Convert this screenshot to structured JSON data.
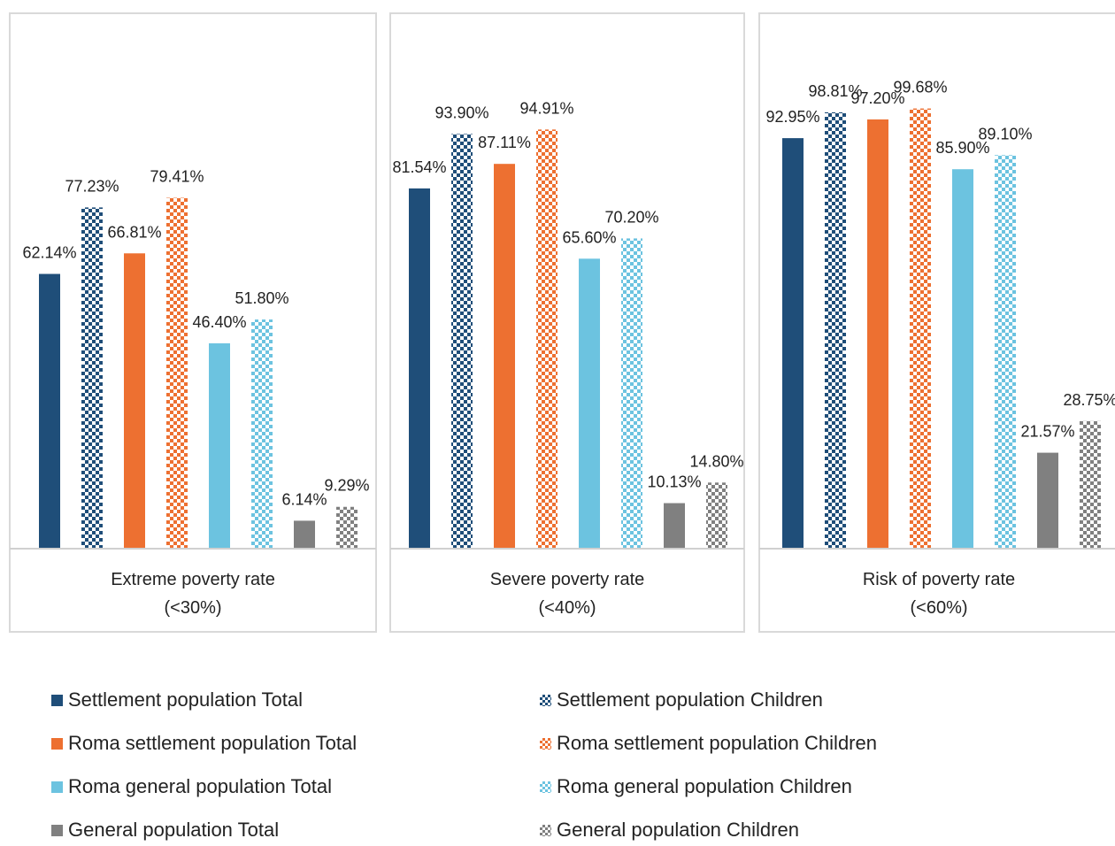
{
  "chart_data": {
    "type": "bar",
    "groups": [
      {
        "label_line1": "Extreme poverty rate",
        "label_line2": "(<30%)"
      },
      {
        "label_line1": "Severe poverty rate",
        "label_line2": "(<40%)"
      },
      {
        "label_line1": "Risk of poverty rate",
        "label_line2": "(<60%)"
      }
    ],
    "series": [
      {
        "name": "Settlement population Total",
        "color": "#1f4e79",
        "pattern": false,
        "values": [
          62.14,
          81.54,
          92.95
        ],
        "labels": [
          "62.14%",
          "81.54%",
          "92.95%"
        ]
      },
      {
        "name": "Settlement population Children",
        "color": "#1f4e79",
        "pattern": true,
        "values": [
          77.23,
          93.9,
          98.81
        ],
        "labels": [
          "77.23%",
          "93.90%",
          "98.81%"
        ]
      },
      {
        "name": "Roma settlement population Total",
        "color": "#ed7031",
        "pattern": false,
        "values": [
          66.81,
          87.11,
          97.2
        ],
        "labels": [
          "66.81%",
          "87.11%",
          "97.20%"
        ]
      },
      {
        "name": "Roma settlement population Children",
        "color": "#ed7031",
        "pattern": true,
        "values": [
          79.41,
          94.91,
          99.68
        ],
        "labels": [
          "79.41%",
          "94.91%",
          "99.68%"
        ]
      },
      {
        "name": "Roma general population Total",
        "color": "#6cc3e0",
        "pattern": false,
        "values": [
          46.4,
          65.6,
          85.9
        ],
        "labels": [
          "46.40%",
          "65.60%",
          "85.90%"
        ]
      },
      {
        "name": "Roma general population Children",
        "color": "#6cc3e0",
        "pattern": true,
        "values": [
          51.8,
          70.2,
          89.1
        ],
        "labels": [
          "51.80%",
          "70.20%",
          "89.10%"
        ]
      },
      {
        "name": "General population Total",
        "color": "#808080",
        "pattern": false,
        "values": [
          6.14,
          10.13,
          21.57
        ],
        "labels": [
          "6.14%",
          "10.13%",
          "21.57%"
        ]
      },
      {
        "name": "General population Children",
        "color": "#808080",
        "pattern": true,
        "values": [
          9.29,
          14.8,
          28.75
        ],
        "labels": [
          "9.29%",
          "14.80%",
          "28.75%"
        ]
      }
    ],
    "ylim": [
      0,
      100
    ],
    "grid": false,
    "legend_position": "bottom"
  }
}
